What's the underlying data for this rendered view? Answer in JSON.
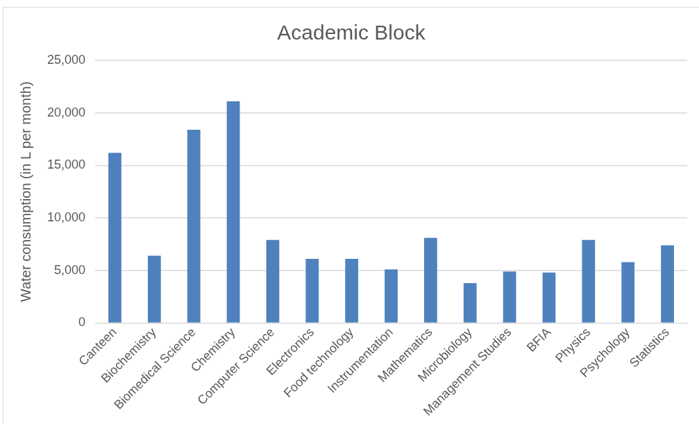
{
  "chart_data": {
    "type": "bar",
    "title": "Academic Block",
    "ylabel": "Water consumption (in L per month)",
    "categories": [
      "Canteen",
      "Biochemistry",
      "Biomedical Science",
      "Chemistry",
      "Computer Science",
      "Electronics",
      "Food technology",
      "Instrumentation",
      "Mathematics",
      "Microbiology",
      "Management Studies",
      "BFIA",
      "Physics",
      "Psychology",
      "Statistics"
    ],
    "values": [
      16200,
      6400,
      18400,
      21100,
      7900,
      6100,
      6100,
      5100,
      8100,
      3800,
      4900,
      4800,
      7900,
      5800,
      7400
    ],
    "color": "#4f81bd",
    "ylim": [
      0,
      25000
    ],
    "yticks": [
      {
        "value": 0,
        "label": "0"
      },
      {
        "value": 5000,
        "label": "5,000"
      },
      {
        "value": 10000,
        "label": "10,000"
      },
      {
        "value": 15000,
        "label": "15,000"
      },
      {
        "value": 20000,
        "label": "20,000"
      },
      {
        "value": 25000,
        "label": "25,000"
      }
    ],
    "grid": "y",
    "legend": false
  }
}
